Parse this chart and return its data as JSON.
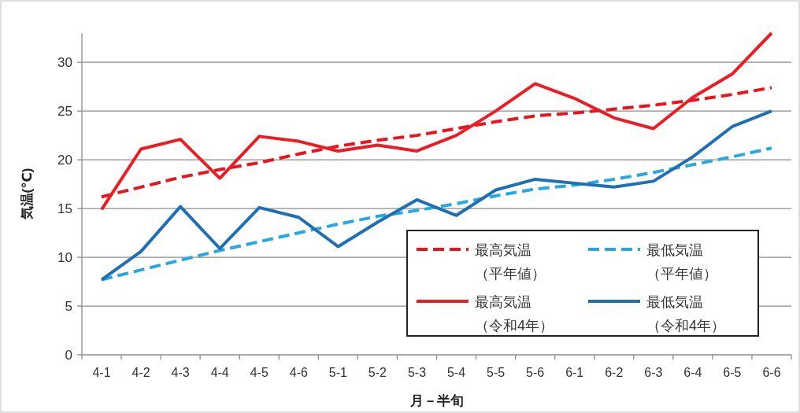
{
  "chart_data": {
    "type": "line",
    "xlabel": "月－半旬",
    "ylabel": "気温(℃)",
    "categories": [
      "4-1",
      "4-2",
      "4-3",
      "4-4",
      "4-5",
      "4-6",
      "5-1",
      "5-2",
      "5-3",
      "5-4",
      "5-5",
      "5-6",
      "6-1",
      "6-2",
      "6-3",
      "6-4",
      "6-5",
      "6-6"
    ],
    "series": [
      {
        "name": "最高気温（平年値）",
        "color": "#e8141e",
        "line_style": "dashed",
        "values": [
          16.2,
          17.2,
          18.2,
          19.0,
          19.7,
          20.6,
          21.4,
          22.0,
          22.5,
          23.2,
          23.9,
          24.5,
          24.8,
          25.2,
          25.6,
          26.1,
          26.7,
          27.4
        ]
      },
      {
        "name": "最低気温（平年値）",
        "color": "#28a8e0",
        "line_style": "dashed",
        "values": [
          7.7,
          8.7,
          9.7,
          10.7,
          11.6,
          12.5,
          13.4,
          14.2,
          14.8,
          15.5,
          16.3,
          17.0,
          17.4,
          18.0,
          18.7,
          19.5,
          20.3,
          21.2
        ]
      },
      {
        "name": "最高気温（令和4年）",
        "color": "#ec1c24",
        "line_style": "solid",
        "values": [
          14.9,
          21.1,
          22.1,
          18.1,
          22.4,
          21.9,
          20.9,
          21.5,
          20.9,
          22.5,
          25.0,
          27.8,
          26.3,
          24.3,
          23.2,
          26.4,
          28.8,
          33.0
        ]
      },
      {
        "name": "最低気温（令和4年）",
        "color": "#1f6fb4",
        "line_style": "solid",
        "values": [
          7.7,
          10.6,
          15.2,
          10.9,
          15.1,
          14.1,
          11.1,
          13.6,
          15.9,
          14.3,
          16.9,
          18.0,
          17.6,
          17.2,
          17.8,
          20.3,
          23.4,
          25.0
        ]
      }
    ],
    "ylim": [
      0,
      33
    ],
    "yticks": [
      0,
      5,
      10,
      15,
      20,
      25,
      30
    ],
    "grid": "y",
    "legend": "bottom right",
    "marker": "none"
  }
}
